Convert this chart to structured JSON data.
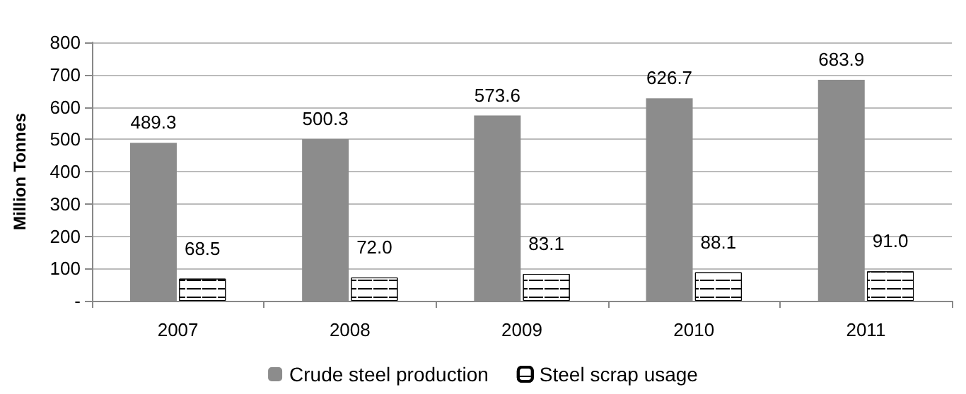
{
  "chart_data": {
    "type": "bar",
    "ylabel": "Million Tonnes",
    "categories": [
      "2007",
      "2008",
      "2009",
      "2010",
      "2011"
    ],
    "series": [
      {
        "name": "Crude steel production",
        "color": "#8c8c8c",
        "values": [
          489.3,
          500.3,
          573.6,
          626.7,
          683.9
        ]
      },
      {
        "name": "Steel scrap usage",
        "color": "#000000",
        "values": [
          68.5,
          72.0,
          83.1,
          88.1,
          91.0
        ]
      }
    ],
    "value_labels": [
      [
        "489.3",
        "500.3",
        "573.6",
        "626.7",
        "683.9"
      ],
      [
        "68.5",
        "72.0",
        "83.1",
        "88.1",
        "91.0"
      ]
    ],
    "ylim": [
      0,
      800
    ],
    "yticks": [
      {
        "value": 0,
        "label": "-"
      },
      100,
      200,
      300,
      400,
      500,
      600,
      700,
      800
    ],
    "grid": "y",
    "legend": "bottom"
  }
}
